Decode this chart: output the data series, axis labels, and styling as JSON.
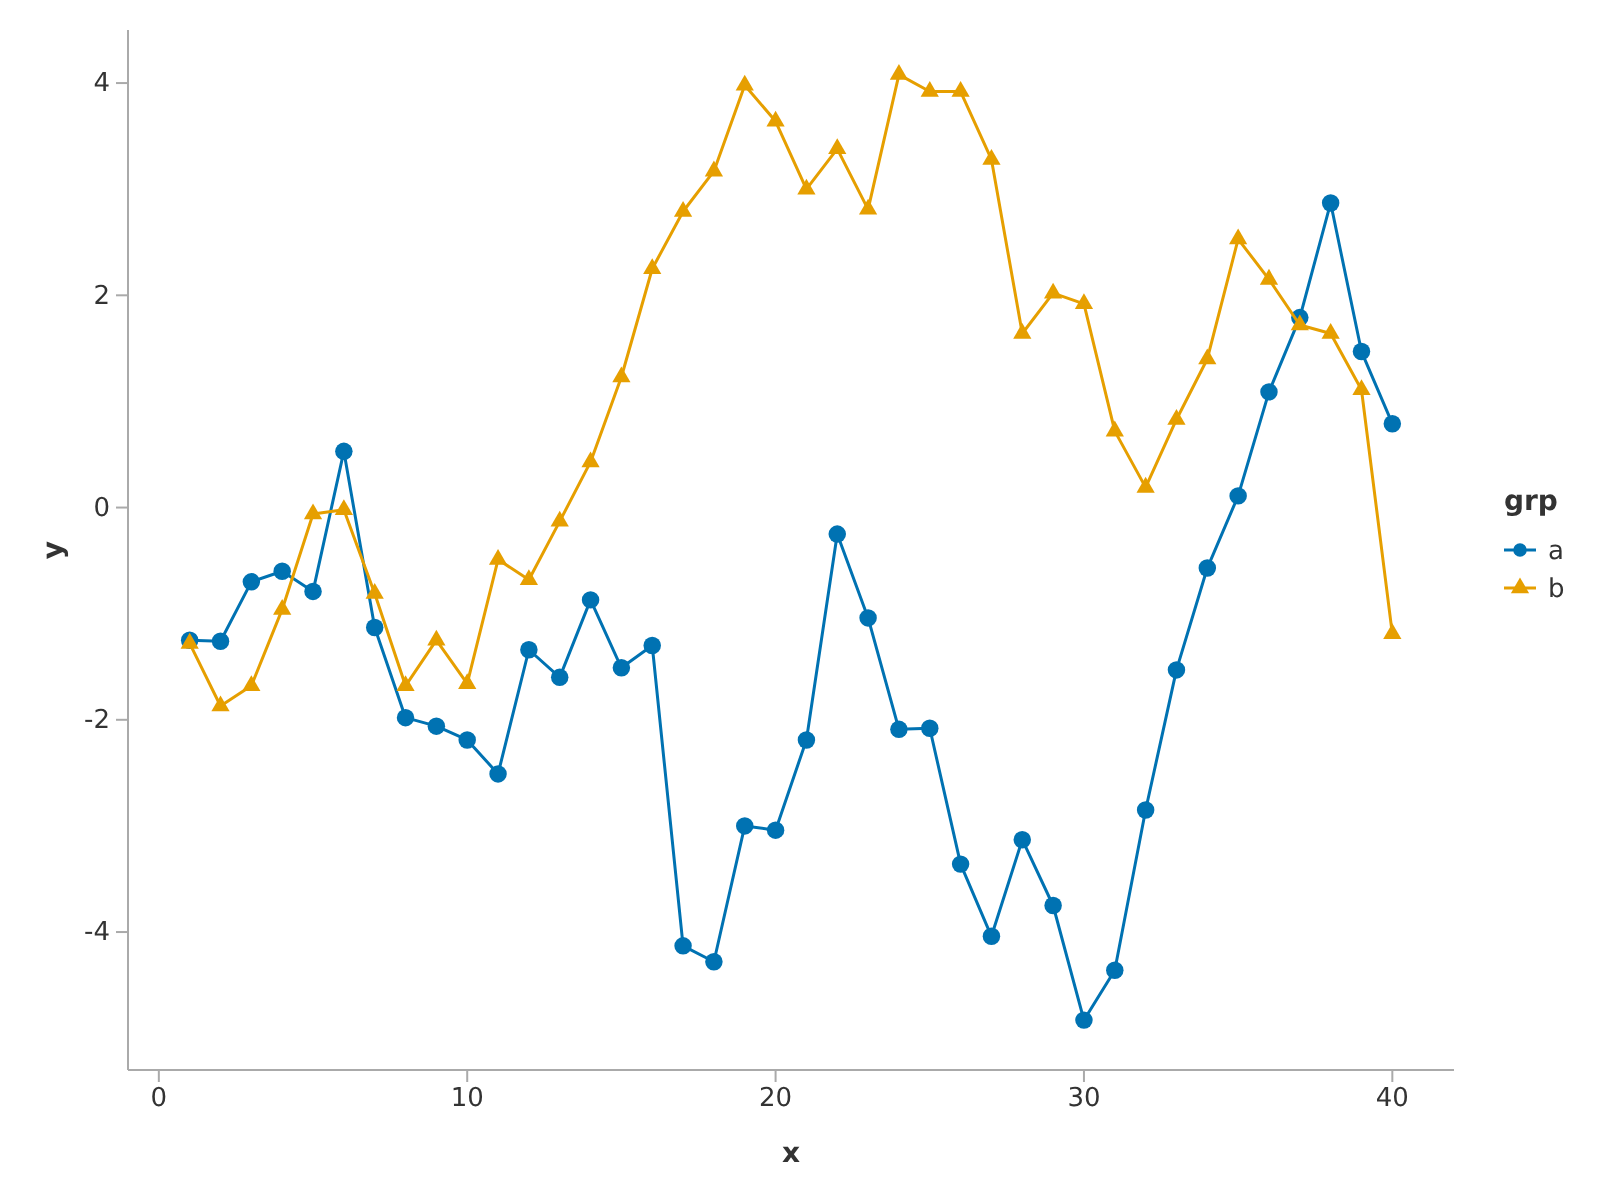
{
  "chart_data": {
    "type": "line",
    "xlabel": "x",
    "ylabel": "y",
    "legend_title": "grp",
    "legend": "right",
    "grid": false,
    "x": [
      1,
      2,
      3,
      4,
      5,
      6,
      7,
      8,
      9,
      10,
      11,
      12,
      13,
      14,
      15,
      16,
      17,
      18,
      19,
      20,
      21,
      22,
      23,
      24,
      25,
      26,
      27,
      28,
      29,
      30,
      31,
      32,
      33,
      34,
      35,
      36,
      37,
      38,
      39,
      40
    ],
    "xlim": [
      -1,
      42
    ],
    "xticks": [
      0,
      10,
      20,
      30,
      40
    ],
    "ylim": [
      -5.3,
      4.5
    ],
    "yticks": [
      -4,
      -2,
      0,
      2,
      4
    ],
    "line_style": "solid",
    "series": [
      {
        "name": "a",
        "color": "#0072b2",
        "marker": "circle",
        "values": [
          -1.25,
          -1.26,
          -0.7,
          -0.6,
          -0.79,
          0.53,
          -1.13,
          -1.98,
          -2.06,
          -2.19,
          -2.51,
          -1.34,
          -1.6,
          -0.87,
          -1.51,
          -1.3,
          -4.13,
          -4.28,
          -3.0,
          -3.04,
          -2.19,
          -0.25,
          -1.04,
          -2.09,
          -2.08,
          -3.36,
          -4.04,
          -3.13,
          -3.75,
          -4.83,
          -4.36,
          -2.85,
          -1.53,
          -0.57,
          0.11,
          1.09,
          1.79,
          2.87,
          1.47,
          0.79
        ]
      },
      {
        "name": "b",
        "color": "#e69f00",
        "marker": "triangle",
        "values": [
          -1.28,
          -1.87,
          -1.68,
          -0.96,
          -0.06,
          -0.02,
          -0.81,
          -1.68,
          -1.25,
          -1.66,
          -0.49,
          -0.68,
          -0.13,
          0.43,
          1.23,
          2.25,
          2.79,
          3.17,
          3.98,
          3.64,
          3.0,
          3.38,
          2.81,
          4.08,
          3.92,
          3.92,
          3.28,
          1.64,
          2.02,
          1.92,
          0.72,
          0.19,
          0.83,
          1.4,
          2.53,
          2.15,
          1.72,
          1.64,
          1.11,
          -1.19
        ]
      }
    ]
  }
}
